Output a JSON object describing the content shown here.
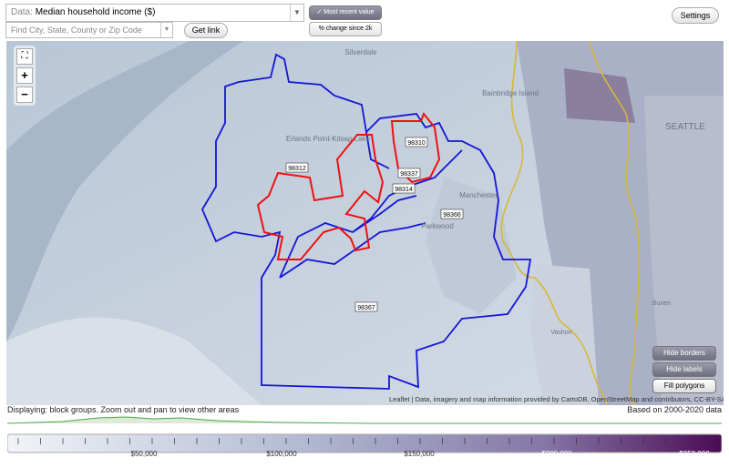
{
  "toolbar": {
    "data_label": "Data:",
    "data_value": "Median household income ($)",
    "search_placeholder": "Find City, State, County or Zip Code",
    "get_link": "Get link",
    "most_recent": "Most recent value",
    "change": "% change since 2k",
    "settings": "Settings"
  },
  "zoom": {
    "in": "+",
    "out": "−"
  },
  "zip_labels": [
    "98312",
    "98310",
    "98337",
    "98314",
    "98366",
    "98367"
  ],
  "place_labels": [
    "Silverdale",
    "Bainbridge Island",
    "SEATTLE",
    "Erlands Point-Kitsap Lake",
    "Manchester",
    "Parkwood",
    "Vashon",
    "Burien"
  ],
  "map_buttons": [
    "Hide borders",
    "Hide labels",
    "Fill polygons"
  ],
  "attribution": "Leaflet | Data, imagery and map information provided by CartoDB, OpenStreetMap and contributors, CC-BY-SA",
  "status": {
    "left": "Displaying: block groups. Zoom out and pan to view other areas",
    "right": "Based on 2000-2020 data"
  },
  "legend": {
    "labels": [
      "$50,000",
      "$100,000",
      "$150,000",
      "$200,000",
      "$250,000"
    ]
  }
}
